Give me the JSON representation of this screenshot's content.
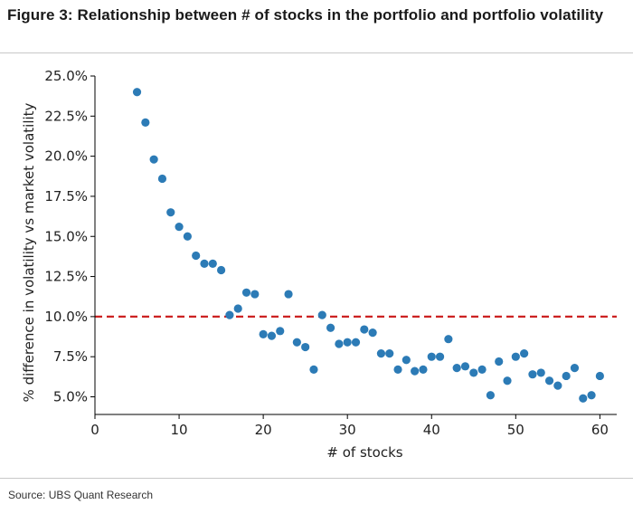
{
  "figure": {
    "title": "Figure 3: Relationship between # of stocks in the portfolio and portfolio volatility",
    "source": "Source: UBS Quant Research"
  },
  "colors": {
    "points": "#2c7bb6",
    "reference_line": "#cc2222",
    "axes": "#000000"
  },
  "chart_data": {
    "type": "scatter",
    "title": "",
    "xlabel": "# of stocks",
    "ylabel": "% difference in volatility vs market volatility",
    "xlim": [
      0,
      62
    ],
    "ylim": [
      3.9,
      25.0
    ],
    "xticks": [
      0,
      10,
      20,
      30,
      40,
      50,
      60
    ],
    "xtick_labels": [
      "0",
      "10",
      "20",
      "30",
      "40",
      "50",
      "60"
    ],
    "yticks": [
      5,
      7.5,
      10,
      12.5,
      15,
      17.5,
      20,
      22.5,
      25
    ],
    "ytick_labels": [
      "5.0%",
      "7.5%",
      "10.0%",
      "12.5%",
      "15.0%",
      "17.5%",
      "20.0%",
      "22.5%",
      "25.0%"
    ],
    "grid": false,
    "reference_line": {
      "y": 10.0,
      "style": "dashed"
    },
    "points": [
      {
        "x": 5,
        "y": 24.0
      },
      {
        "x": 6,
        "y": 22.1
      },
      {
        "x": 7,
        "y": 19.8
      },
      {
        "x": 8,
        "y": 18.6
      },
      {
        "x": 9,
        "y": 16.5
      },
      {
        "x": 10,
        "y": 15.6
      },
      {
        "x": 11,
        "y": 15.0
      },
      {
        "x": 12,
        "y": 13.8
      },
      {
        "x": 13,
        "y": 13.3
      },
      {
        "x": 14,
        "y": 13.3
      },
      {
        "x": 15,
        "y": 12.9
      },
      {
        "x": 16,
        "y": 10.1
      },
      {
        "x": 17,
        "y": 10.5
      },
      {
        "x": 18,
        "y": 11.5
      },
      {
        "x": 19,
        "y": 11.4
      },
      {
        "x": 20,
        "y": 8.9
      },
      {
        "x": 21,
        "y": 8.8
      },
      {
        "x": 22,
        "y": 9.1
      },
      {
        "x": 23,
        "y": 11.4
      },
      {
        "x": 24,
        "y": 8.4
      },
      {
        "x": 25,
        "y": 8.1
      },
      {
        "x": 26,
        "y": 6.7
      },
      {
        "x": 27,
        "y": 10.1
      },
      {
        "x": 28,
        "y": 9.3
      },
      {
        "x": 29,
        "y": 8.3
      },
      {
        "x": 30,
        "y": 8.4
      },
      {
        "x": 31,
        "y": 8.4
      },
      {
        "x": 32,
        "y": 9.2
      },
      {
        "x": 33,
        "y": 9.0
      },
      {
        "x": 34,
        "y": 7.7
      },
      {
        "x": 35,
        "y": 7.7
      },
      {
        "x": 36,
        "y": 6.7
      },
      {
        "x": 37,
        "y": 7.3
      },
      {
        "x": 38,
        "y": 6.6
      },
      {
        "x": 39,
        "y": 6.7
      },
      {
        "x": 40,
        "y": 7.5
      },
      {
        "x": 41,
        "y": 7.5
      },
      {
        "x": 42,
        "y": 8.6
      },
      {
        "x": 43,
        "y": 6.8
      },
      {
        "x": 44,
        "y": 6.9
      },
      {
        "x": 45,
        "y": 6.5
      },
      {
        "x": 46,
        "y": 6.7
      },
      {
        "x": 47,
        "y": 5.1
      },
      {
        "x": 48,
        "y": 7.2
      },
      {
        "x": 49,
        "y": 6.0
      },
      {
        "x": 50,
        "y": 7.5
      },
      {
        "x": 51,
        "y": 7.7
      },
      {
        "x": 52,
        "y": 6.4
      },
      {
        "x": 53,
        "y": 6.5
      },
      {
        "x": 54,
        "y": 6.0
      },
      {
        "x": 55,
        "y": 5.7
      },
      {
        "x": 56,
        "y": 6.3
      },
      {
        "x": 57,
        "y": 6.8
      },
      {
        "x": 58,
        "y": 4.9
      },
      {
        "x": 59,
        "y": 5.1
      },
      {
        "x": 60,
        "y": 6.3
      }
    ]
  }
}
